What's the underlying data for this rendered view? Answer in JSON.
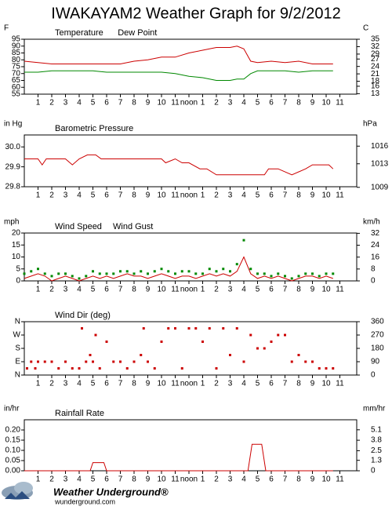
{
  "title": "IWAKAYAM2 Weather Graph for 9/2/2012",
  "footer": {
    "brand": "Weather Underground®",
    "site": "wunderground.com"
  },
  "chart_data": [
    {
      "type": "line",
      "ylabel": "F",
      "y2label": "C",
      "xlim": [
        0,
        24
      ],
      "xticks": [
        1,
        2,
        3,
        4,
        5,
        6,
        7,
        8,
        9,
        10,
        11,
        {
          "value": 12,
          "label": "noon"
        },
        {
          "value": 13,
          "label": "1"
        },
        {
          "value": 14,
          "label": "2"
        },
        {
          "value": 15,
          "label": "3"
        },
        {
          "value": 16,
          "label": "4"
        },
        {
          "value": 17,
          "label": "5"
        },
        {
          "value": 18,
          "label": "6"
        },
        {
          "value": 19,
          "label": "7"
        },
        {
          "value": 20,
          "label": "8"
        },
        {
          "value": 21,
          "label": "9"
        },
        {
          "value": 22,
          "label": "10"
        },
        {
          "value": 23,
          "label": "11"
        }
      ],
      "ylim": [
        55,
        95
      ],
      "yticks": [
        55,
        60,
        65,
        70,
        75,
        80,
        85,
        90,
        95
      ],
      "y2lim": [
        12.8,
        35
      ],
      "y2ticks": [
        13,
        16,
        18,
        21,
        24,
        27,
        29,
        32,
        35
      ],
      "series": [
        {
          "name": "Temperature",
          "color": "#cc0000",
          "x": [
            0,
            1,
            2,
            3,
            4,
            5,
            6,
            7,
            8,
            9,
            10,
            11,
            12,
            13,
            14,
            15,
            15.5,
            16,
            16.5,
            17,
            18,
            19,
            20,
            21,
            22,
            22.5
          ],
          "values": [
            79,
            78,
            77,
            77,
            77,
            77,
            77,
            77,
            79,
            80,
            82,
            82,
            85,
            87,
            89,
            89,
            90,
            88,
            79,
            78,
            79,
            78,
            79,
            77,
            77,
            77
          ]
        },
        {
          "name": "Dew Point",
          "color": "#008800",
          "x": [
            0,
            1,
            2,
            3,
            4,
            5,
            6,
            7,
            8,
            9,
            10,
            11,
            12,
            13,
            14,
            15,
            15.5,
            16,
            16.5,
            17,
            18,
            19,
            20,
            21,
            22,
            22.5
          ],
          "values": [
            71,
            71,
            72,
            72,
            72,
            72,
            71,
            71,
            71,
            71,
            71,
            70,
            68,
            67,
            65,
            65,
            66,
            66,
            70,
            72,
            72,
            72,
            71,
            72,
            72,
            72
          ]
        }
      ]
    },
    {
      "type": "line",
      "ylabel": "in Hg",
      "y2label": "hPa",
      "xlim": [
        0,
        24
      ],
      "xticks": [
        1,
        2,
        3,
        4,
        5,
        6,
        7,
        8,
        9,
        10,
        11,
        {
          "value": 12,
          "label": "noon"
        },
        {
          "value": 13,
          "label": "1"
        },
        {
          "value": 14,
          "label": "2"
        },
        {
          "value": 15,
          "label": "3"
        },
        {
          "value": 16,
          "label": "4"
        },
        {
          "value": 17,
          "label": "5"
        },
        {
          "value": 18,
          "label": "6"
        },
        {
          "value": 19,
          "label": "7"
        },
        {
          "value": 20,
          "label": "8"
        },
        {
          "value": 21,
          "label": "9"
        },
        {
          "value": 22,
          "label": "10"
        },
        {
          "value": 23,
          "label": "11"
        }
      ],
      "ylim": [
        29.8,
        30.06
      ],
      "yticks": [
        29.8,
        29.9,
        {
          "value": 30,
          "label": "30.0"
        }
      ],
      "y2lim": [
        1009.1,
        1017.9
      ],
      "y2ticks": [
        1009,
        1013,
        1016
      ],
      "series": [
        {
          "name": "Barometric Pressure",
          "color": "#cc0000",
          "x": [
            0,
            1,
            1.3,
            1.6,
            2,
            3,
            3.5,
            4,
            4.6,
            5.2,
            5.6,
            10,
            10.3,
            11,
            11.5,
            12,
            12.8,
            13.3,
            14,
            17.5,
            17.8,
            18.5,
            19.5,
            20.5,
            21,
            22.2,
            22.5
          ],
          "values": [
            29.94,
            29.94,
            29.91,
            29.94,
            29.94,
            29.94,
            29.91,
            29.94,
            29.96,
            29.96,
            29.94,
            29.94,
            29.92,
            29.94,
            29.92,
            29.92,
            29.89,
            29.89,
            29.86,
            29.86,
            29.89,
            29.89,
            29.86,
            29.89,
            29.91,
            29.91,
            29.89
          ]
        }
      ]
    },
    {
      "type": "line",
      "ylabel": "mph",
      "y2label": "km/h",
      "xlim": [
        0,
        24
      ],
      "xticks": [
        1,
        2,
        3,
        4,
        5,
        6,
        7,
        8,
        9,
        10,
        11,
        {
          "value": 12,
          "label": "noon"
        },
        {
          "value": 13,
          "label": "1"
        },
        {
          "value": 14,
          "label": "2"
        },
        {
          "value": 15,
          "label": "3"
        },
        {
          "value": 16,
          "label": "4"
        },
        {
          "value": 17,
          "label": "5"
        },
        {
          "value": 18,
          "label": "6"
        },
        {
          "value": 19,
          "label": "7"
        },
        {
          "value": 20,
          "label": "8"
        },
        {
          "value": 21,
          "label": "9"
        },
        {
          "value": 22,
          "label": "10"
        },
        {
          "value": 23,
          "label": "11"
        }
      ],
      "ylim": [
        0,
        20
      ],
      "yticks": [
        0,
        5,
        10,
        15,
        20
      ],
      "y2lim": [
        0,
        32.2
      ],
      "y2ticks": [
        0,
        8,
        16,
        24,
        32
      ],
      "series": [
        {
          "name": "Wind Speed",
          "color": "#cc0000",
          "style": "line",
          "x": [
            0,
            0.5,
            1,
            1.5,
            2,
            2.5,
            3,
            3.5,
            4,
            4.5,
            5,
            5.5,
            6,
            6.5,
            7,
            7.5,
            8,
            8.5,
            9,
            9.5,
            10,
            10.5,
            11,
            11.5,
            12,
            12.5,
            13,
            13.5,
            14,
            14.5,
            15,
            15.5,
            16,
            16.5,
            17,
            17.5,
            18,
            18.5,
            19,
            19.5,
            20,
            20.5,
            21,
            21.5,
            22,
            22.5
          ],
          "values": [
            1,
            2,
            3,
            2,
            0,
            1,
            2,
            1,
            0,
            1,
            2,
            1,
            2,
            1,
            2,
            3,
            2,
            2,
            1,
            2,
            3,
            2,
            1,
            2,
            2,
            1,
            2,
            3,
            2,
            3,
            2,
            4,
            10,
            3,
            1,
            2,
            1,
            2,
            1,
            0,
            1,
            2,
            2,
            1,
            2,
            1
          ]
        },
        {
          "name": "Wind Gust",
          "color": "#008800",
          "style": "points",
          "x": [
            0,
            0.5,
            1,
            1.5,
            2,
            2.5,
            3,
            3.5,
            4,
            4.5,
            5,
            5.5,
            6,
            6.5,
            7,
            7.5,
            8,
            8.5,
            9,
            9.5,
            10,
            10.5,
            11,
            11.5,
            12,
            12.5,
            13,
            13.5,
            14,
            14.5,
            15,
            15.5,
            16,
            16.5,
            17,
            17.5,
            18,
            18.5,
            19,
            19.5,
            20,
            20.5,
            21,
            21.5,
            22,
            22.5
          ],
          "values": [
            3,
            4,
            5,
            3,
            2,
            3,
            3,
            2,
            1,
            2,
            4,
            3,
            3,
            3,
            4,
            4,
            3,
            4,
            3,
            4,
            5,
            4,
            3,
            4,
            4,
            3,
            3,
            5,
            4,
            5,
            4,
            7,
            17,
            5,
            3,
            3,
            2,
            3,
            2,
            1,
            2,
            3,
            3,
            2,
            3,
            3
          ]
        }
      ]
    },
    {
      "type": "scatter",
      "xlim": [
        0,
        24
      ],
      "xticks": [
        1,
        2,
        3,
        4,
        5,
        6,
        7,
        8,
        9,
        10,
        11,
        {
          "value": 12,
          "label": "noon"
        },
        {
          "value": 13,
          "label": "1"
        },
        {
          "value": 14,
          "label": "2"
        },
        {
          "value": 15,
          "label": "3"
        },
        {
          "value": 16,
          "label": "4"
        },
        {
          "value": 17,
          "label": "5"
        },
        {
          "value": 18,
          "label": "6"
        },
        {
          "value": 19,
          "label": "7"
        },
        {
          "value": 20,
          "label": "8"
        },
        {
          "value": 21,
          "label": "9"
        },
        {
          "value": 22,
          "label": "10"
        },
        {
          "value": 23,
          "label": "11"
        }
      ],
      "ylim": [
        0,
        360
      ],
      "yticks": [
        {
          "value": 0,
          "label": "N"
        },
        {
          "value": 90,
          "label": "E"
        },
        {
          "value": 180,
          "label": "S"
        },
        {
          "value": 270,
          "label": "W"
        },
        {
          "value": 360,
          "label": "N"
        }
      ],
      "y2lim": [
        0,
        360
      ],
      "y2ticks": [
        0,
        90,
        180,
        270,
        360
      ],
      "series": [
        {
          "name": "Wind Dir (deg)",
          "color": "#cc0000",
          "style": "points",
          "x": [
            0.2,
            0.5,
            0.8,
            1,
            1.5,
            2,
            2.5,
            3,
            3.5,
            4,
            4.2,
            4.5,
            4.8,
            5,
            5.2,
            5.5,
            6,
            6.5,
            7,
            7.5,
            8,
            8.5,
            8.7,
            9,
            9.5,
            10,
            10.5,
            11,
            11.5,
            12,
            12.5,
            13,
            13.5,
            14,
            14.5,
            15,
            15.5,
            16,
            16.5,
            17,
            17.5,
            18,
            18.5,
            19,
            19.5,
            20,
            20.5,
            21,
            21.5,
            22,
            22.5
          ],
          "values": [
            45,
            90,
            45,
            90,
            90,
            90,
            45,
            90,
            45,
            45,
            315,
            90,
            135,
            90,
            270,
            45,
            225,
            90,
            90,
            45,
            90,
            135,
            315,
            90,
            45,
            225,
            315,
            315,
            45,
            315,
            315,
            225,
            315,
            45,
            315,
            135,
            315,
            90,
            270,
            180,
            180,
            225,
            270,
            270,
            90,
            135,
            90,
            90,
            45,
            45,
            45
          ]
        }
      ]
    },
    {
      "type": "line",
      "ylabel": "in/hr",
      "y2label": "mm/hr",
      "xlim": [
        0,
        24
      ],
      "xticks": [
        1,
        2,
        3,
        4,
        5,
        6,
        7,
        8,
        9,
        10,
        11,
        {
          "value": 12,
          "label": "noon"
        },
        {
          "value": 13,
          "label": "1"
        },
        {
          "value": 14,
          "label": "2"
        },
        {
          "value": 15,
          "label": "3"
        },
        {
          "value": 16,
          "label": "4"
        },
        {
          "value": 17,
          "label": "5"
        },
        {
          "value": 18,
          "label": "6"
        },
        {
          "value": 19,
          "label": "7"
        },
        {
          "value": 20,
          "label": "8"
        },
        {
          "value": 21,
          "label": "9"
        },
        {
          "value": 22,
          "label": "10"
        },
        {
          "value": 23,
          "label": "11"
        }
      ],
      "ylim": [
        0,
        0.25
      ],
      "yticks": [
        {
          "value": 0,
          "label": "0.00"
        },
        {
          "value": 0.05,
          "label": "0.05"
        },
        {
          "value": 0.1,
          "label": "0.10"
        },
        {
          "value": 0.15,
          "label": "0.15"
        },
        {
          "value": 0.2,
          "label": "0.20"
        }
      ],
      "y2lim": [
        0,
        6.35
      ],
      "y2ticks": [
        0,
        1.3,
        2.5,
        3.8,
        5.1
      ],
      "series": [
        {
          "name": "Rainfall Rate",
          "color": "#cc0000",
          "x": [
            0,
            4.8,
            5,
            5.8,
            6,
            16.3,
            16.6,
            17.3,
            17.6,
            22.5
          ],
          "values": [
            0,
            0,
            0.04,
            0.04,
            0,
            0,
            0.13,
            0.13,
            0,
            0
          ]
        }
      ]
    }
  ]
}
